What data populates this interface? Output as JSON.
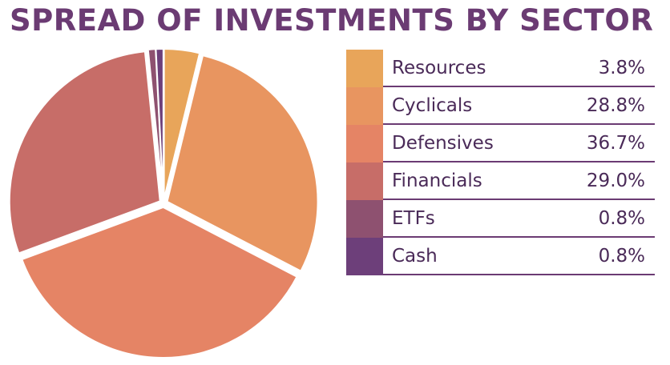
{
  "colors": {
    "title": "#6b3b73",
    "text": "#4a2a58",
    "rule": "#6b3b73",
    "slice_border": "#ffffff"
  },
  "chart_data": {
    "type": "pie",
    "title": "SPREAD OF INVESTMENTS BY SECTOR",
    "legend_position": "right",
    "slices": [
      {
        "label": "Resources",
        "value": 3.8,
        "value_label": "3.8%",
        "color": "#e8a55a"
      },
      {
        "label": "Cyclicals",
        "value": 28.8,
        "value_label": "28.8%",
        "color": "#e89560"
      },
      {
        "label": "Defensives",
        "value": 36.7,
        "value_label": "36.7%",
        "color": "#e58465"
      },
      {
        "label": "Financials",
        "value": 29.0,
        "value_label": "29.0%",
        "color": "#c76d68"
      },
      {
        "label": "ETFs",
        "value": 0.8,
        "value_label": "0.8%",
        "color": "#8e5170"
      },
      {
        "label": "Cash",
        "value": 0.8,
        "value_label": "0.8%",
        "color": "#6d3f7a"
      }
    ]
  }
}
